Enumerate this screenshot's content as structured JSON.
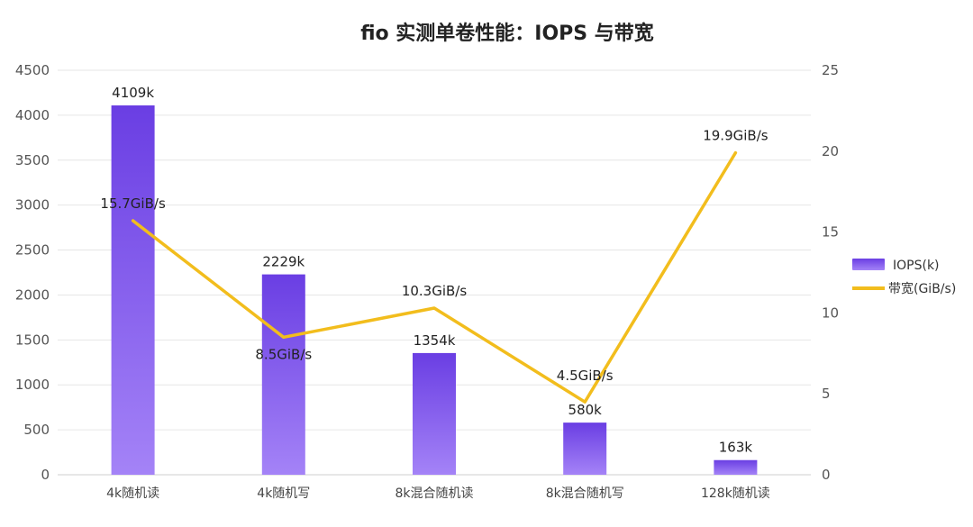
{
  "chart_data": {
    "type": "bar",
    "title": "fio 实测单卷性能：IOPS 与带宽",
    "categories": [
      "4k随机读",
      "4k随机写",
      "8k混合随机读",
      "8k混合随机写",
      "128k随机读"
    ],
    "series": [
      {
        "name": "IOPS(k)",
        "type": "bar",
        "axis": "left",
        "values": [
          4109,
          2229,
          1354,
          580,
          163
        ],
        "labels": [
          "4109k",
          "2229k",
          "1354k",
          "580k",
          "163k"
        ],
        "color_top": "#6a3ee3",
        "color_bottom": "#a483f7"
      },
      {
        "name": "带宽(GiB/s)",
        "type": "line",
        "axis": "right",
        "values": [
          15.7,
          8.5,
          10.3,
          4.5,
          19.9
        ],
        "labels": [
          "15.7GiB/s",
          "8.5GiB/s",
          "10.3GiB/s",
          "4.5GiB/s",
          "19.9GiB/s"
        ],
        "color": "#f2bd1d"
      }
    ],
    "y_left": {
      "min": 0,
      "max": 4500,
      "ticks": [
        0,
        500,
        1000,
        1500,
        2000,
        2500,
        3000,
        3500,
        4000,
        4500
      ]
    },
    "y_right": {
      "min": 0,
      "max": 25,
      "ticks": [
        0,
        5,
        10,
        15,
        20,
        25
      ]
    },
    "grid": true,
    "legend_position": "right"
  }
}
